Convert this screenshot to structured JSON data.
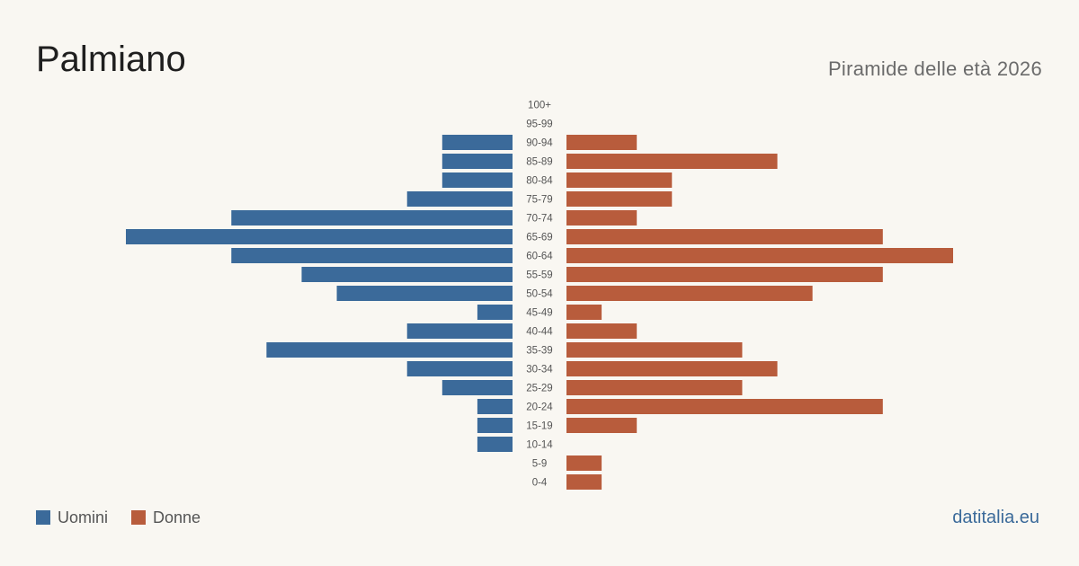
{
  "header": {
    "title": "Palmiano",
    "subtitle": "Piramide delle età 2026"
  },
  "legend": {
    "male_label": "Uomini",
    "female_label": "Donne"
  },
  "footer": {
    "source": "datitalia.eu"
  },
  "colors": {
    "male": "#3b6a9a",
    "female": "#b85c3c"
  },
  "chart_data": {
    "type": "bar",
    "orientation": "horizontal-pyramid",
    "categories": [
      "100+",
      "95-99",
      "90-94",
      "85-89",
      "80-84",
      "75-79",
      "70-74",
      "65-69",
      "60-64",
      "55-59",
      "50-54",
      "45-49",
      "40-44",
      "35-39",
      "30-34",
      "25-29",
      "20-24",
      "15-19",
      "10-14",
      "5-9",
      "0-4"
    ],
    "series": [
      {
        "name": "Uomini",
        "values": [
          0,
          0,
          2,
          2,
          2,
          3,
          8,
          11,
          8,
          6,
          5,
          1,
          3,
          7,
          3,
          2,
          1,
          1,
          1,
          0,
          0
        ]
      },
      {
        "name": "Donne",
        "values": [
          0,
          0,
          2,
          6,
          3,
          3,
          2,
          9,
          11,
          9,
          7,
          1,
          2,
          5,
          6,
          5,
          9,
          2,
          0,
          1,
          1
        ]
      }
    ],
    "xlim": [
      0,
      11
    ]
  }
}
